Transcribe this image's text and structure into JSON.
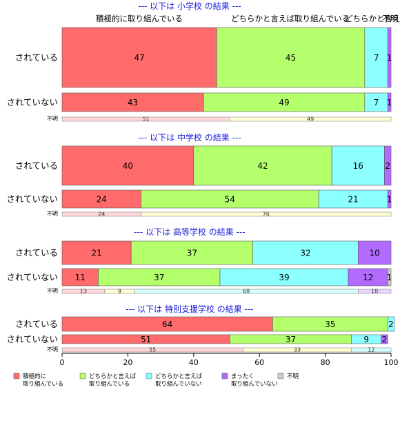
{
  "chart_data": {
    "type": "bar",
    "orientation": "horizontal-stacked",
    "xlim": [
      0,
      100
    ],
    "xticks": [
      0,
      20,
      40,
      60,
      80,
      100
    ],
    "column_headers": [
      "積極的に取り組んでいる",
      "どちらかと言えば取り組んでいる",
      "どちらかと言えば",
      "不明"
    ],
    "categories": [
      {
        "key": "active",
        "label": [
          "積極的に",
          "取り組んでいる"
        ],
        "color": "#ff6b6b"
      },
      {
        "key": "somewhat_active",
        "label": [
          "どちらかと言えば",
          "取り組んでいる"
        ],
        "color": "#b4ff6c"
      },
      {
        "key": "somewhat_not",
        "label": [
          "どちらかと言えば",
          "取り組んでいない"
        ],
        "color": "#8cffff"
      },
      {
        "key": "not_at_all",
        "label": [
          "まったく",
          "取り組んでいない"
        ],
        "color": "#b26bff"
      },
      {
        "key": "unknown",
        "label": [
          "不明"
        ],
        "color": "#cccccc"
      }
    ],
    "unknown_row_colors": [
      "#ffd6da",
      "#ffffd2",
      "#d6ffff",
      "#e8d6ff",
      "#e0e0e0"
    ],
    "panels": [
      {
        "title": "--- 以下は 小学校 の結果 ---",
        "rows": [
          {
            "label": "されている",
            "values": [
              47,
              45,
              7,
              1,
              0
            ]
          },
          {
            "label": "されていない",
            "values": [
              43,
              49,
              7,
              1,
              0
            ]
          }
        ],
        "unknown_row": {
          "label": "不明",
          "values": [
            51,
            49,
            0,
            0,
            0
          ]
        }
      },
      {
        "title": "--- 以下は 中学校 の結果 ---",
        "rows": [
          {
            "label": "されている",
            "values": [
              40,
              42,
              16,
              2,
              0
            ]
          },
          {
            "label": "されていない",
            "values": [
              24,
              54,
              21,
              1,
              0
            ]
          }
        ],
        "unknown_row": {
          "label": "不明",
          "values": [
            24,
            76,
            0,
            0,
            0
          ]
        }
      },
      {
        "title": "--- 以下は 高等学校 の結果 ---",
        "rows": [
          {
            "label": "されている",
            "values": [
              21,
              37,
              32,
              10,
              0
            ]
          },
          {
            "label": "されていない",
            "values": [
              11,
              37,
              39,
              12,
              1
            ]
          }
        ],
        "unknown_row": {
          "label": "不明",
          "values": [
            13,
            9,
            68,
            10,
            0
          ]
        }
      },
      {
        "title": "--- 以下は 特別支援学校 の結果 ---",
        "rows": [
          {
            "label": "されている",
            "values": [
              64,
              35,
              2,
              0,
              0
            ]
          },
          {
            "label": "されていない",
            "values": [
              51,
              37,
              9,
              2,
              0
            ]
          }
        ],
        "unknown_row": {
          "label": "不明",
          "values": [
            55,
            33,
            12,
            0,
            0
          ]
        }
      }
    ]
  }
}
